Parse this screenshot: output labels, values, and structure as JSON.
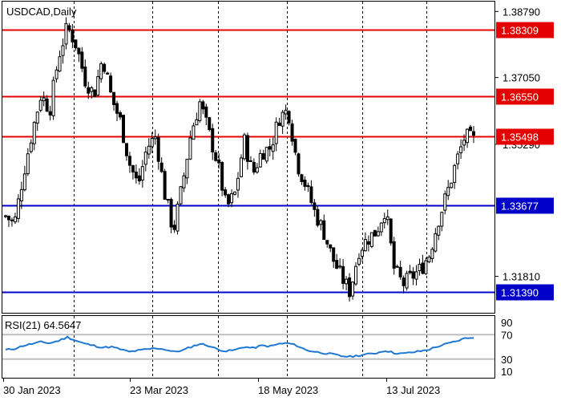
{
  "title": "USDCAD,Daily",
  "price_axis": {
    "ticks": [
      "1.38790",
      "1.37050",
      "1.35290",
      "1.31810"
    ],
    "tick_values": [
      1.3879,
      1.3705,
      1.3529,
      1.3181
    ],
    "range": [
      1.3085,
      1.3905
    ]
  },
  "levels": [
    {
      "label": "1.38309",
      "value": 1.38309,
      "color": "#e50000"
    },
    {
      "label": "1.36550",
      "value": 1.3655,
      "color": "#e50000"
    },
    {
      "label": "1.35498",
      "value": 1.35498,
      "color": "#e50000"
    },
    {
      "label": "1.33677",
      "value": 1.33677,
      "color": "#0000c8"
    },
    {
      "label": "1.31390",
      "value": 1.3139,
      "color": "#0000c8"
    }
  ],
  "rsi": {
    "label": "RSI(21) 64.5647",
    "axis_ticks": [
      "90",
      "70",
      "30",
      "10"
    ],
    "range": [
      10,
      90
    ],
    "overbought": 70,
    "oversold": 30,
    "line_color": "#1e78d2"
  },
  "date_axis": [
    "30 Jan 2023",
    "23 Mar 2023",
    "18 May 2023",
    "13 Jul 2023"
  ],
  "chart_data": {
    "type": "candlestick",
    "symbol": "USDCAD",
    "timeframe": "Daily",
    "x_labels": [
      "30 Jan 2023",
      "23 Mar 2023",
      "18 May 2023",
      "13 Jul 2023"
    ],
    "close_path": [
      1.334,
      1.332,
      1.345,
      1.356,
      1.366,
      1.362,
      1.376,
      1.384,
      1.379,
      1.37,
      1.366,
      1.376,
      1.365,
      1.359,
      1.348,
      1.342,
      1.352,
      1.355,
      1.34,
      1.33,
      1.342,
      1.356,
      1.364,
      1.356,
      1.348,
      1.336,
      1.34,
      1.354,
      1.345,
      1.351,
      1.352,
      1.36,
      1.362,
      1.348,
      1.342,
      1.335,
      1.33,
      1.323,
      1.318,
      1.314,
      1.325,
      1.328,
      1.33,
      1.336,
      1.32,
      1.316,
      1.318,
      1.32,
      1.324,
      1.333,
      1.34,
      1.348,
      1.355,
      1.354
    ],
    "rsi_path": [
      45,
      47,
      52,
      55,
      58,
      56,
      60,
      66,
      60,
      55,
      52,
      49,
      50,
      46,
      42,
      44,
      46,
      48,
      46,
      42,
      44,
      50,
      55,
      52,
      46,
      43,
      45,
      50,
      48,
      52,
      51,
      55,
      56,
      52,
      45,
      42,
      40,
      38,
      35,
      34,
      36,
      38,
      40,
      44,
      40,
      39,
      41,
      43,
      46,
      51,
      55,
      59,
      64,
      64.56
    ]
  }
}
